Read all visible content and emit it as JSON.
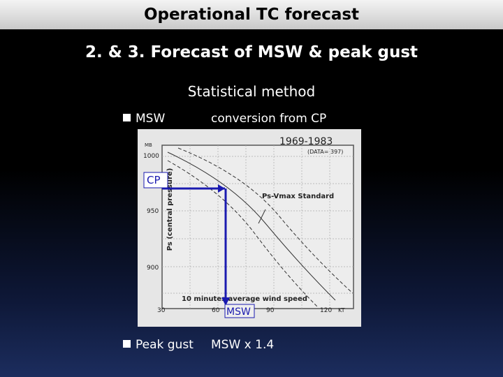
{
  "header": {
    "title": "Operational TC forecast"
  },
  "slide": {
    "title": "2. & 3. Forecast of MSW & peak gust",
    "subtitle": "Statistical method",
    "bullets": [
      {
        "label": "MSW",
        "text": "conversion from CP"
      },
      {
        "label": "Peak gust",
        "text": "MSW x 1.4"
      }
    ]
  },
  "figure": {
    "period": "1969-1983",
    "data_count": "(DATA= 397)",
    "y_unit": "MB",
    "y_labels": [
      "1000",
      "950",
      "900"
    ],
    "y_title": "Ps (central pressure)",
    "curve_label": "Ps-Vmax Standard",
    "x_title": "10 minutes average wind speed",
    "x_labels": [
      "30",
      "60",
      "90",
      "120"
    ],
    "x_unit": "KT",
    "cp_marker": "CP",
    "msw_marker": "MSW"
  }
}
